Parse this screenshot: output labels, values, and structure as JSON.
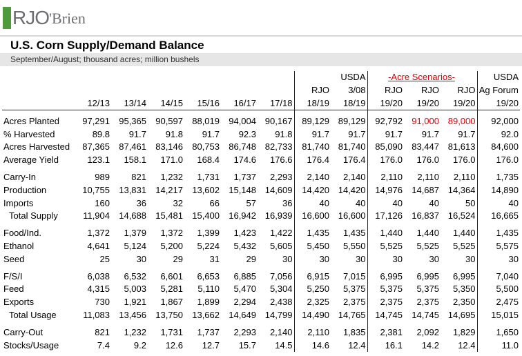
{
  "logo": {
    "mark": "RJO",
    "name": "'Brien"
  },
  "title": "U.S. Corn Supply/Demand Balance",
  "subtitle": "September/August;  thousand acres; million bushels",
  "header": {
    "row1": [
      null,
      null,
      null,
      null,
      null,
      null,
      null,
      "USDA",
      null,
      null,
      null,
      "USDA"
    ],
    "scenarios": "-Acre Scenarios-",
    "row2": [
      null,
      null,
      null,
      null,
      null,
      null,
      "RJO",
      "3/08",
      "RJO",
      "RJO",
      "RJO",
      "Ag Forum"
    ],
    "row3": [
      "12/13",
      "13/14",
      "14/15",
      "15/16",
      "16/17",
      "17/18",
      "18/19",
      "18/19",
      "19/20",
      "19/20",
      "19/20",
      "19/20"
    ]
  },
  "groups": [
    [
      {
        "label": "Acres Planted",
        "values": [
          "97,291",
          "95,365",
          "90,597",
          "88,019",
          "94,004",
          "90,167",
          "89,129",
          "89,129",
          "92,792",
          "91,000",
          "89,000",
          "92,000"
        ]
      },
      {
        "label": "% Harvested",
        "values": [
          "89.8",
          "91.7",
          "91.8",
          "91.7",
          "92.3",
          "91.8",
          "91.7",
          "91.7",
          "91.7",
          "91.7",
          "91.7",
          "92.0"
        ]
      },
      {
        "label": "Acres Harvested",
        "values": [
          "87,365",
          "87,461",
          "83,146",
          "80,753",
          "86,748",
          "82,733",
          "81,740",
          "81,740",
          "85,090",
          "83,447",
          "81,613",
          "84,600"
        ]
      },
      {
        "label": "Average Yield",
        "values": [
          "123.1",
          "158.1",
          "171.0",
          "168.4",
          "174.6",
          "176.6",
          "176.4",
          "176.4",
          "176.0",
          "176.0",
          "176.0",
          "176.0"
        ]
      }
    ],
    [
      {
        "label": "Carry-In",
        "values": [
          "989",
          "821",
          "1,232",
          "1,731",
          "1,737",
          "2,293",
          "2,140",
          "2,140",
          "2,110",
          "2,110",
          "2,110",
          "1,735"
        ]
      },
      {
        "label": "Production",
        "values": [
          "10,755",
          "13,831",
          "14,217",
          "13,602",
          "15,148",
          "14,609",
          "14,420",
          "14,420",
          "14,976",
          "14,687",
          "14,364",
          "14,890"
        ]
      },
      {
        "label": "Imports",
        "values": [
          "160",
          "36",
          "32",
          "66",
          "57",
          "36",
          "40",
          "40",
          "40",
          "40",
          "50",
          "40"
        ]
      },
      {
        "label": "Total Supply",
        "values": [
          "11,904",
          "14,688",
          "15,481",
          "15,400",
          "16,942",
          "16,939",
          "16,600",
          "16,600",
          "17,126",
          "16,837",
          "16,524",
          "16,665"
        ]
      }
    ],
    [
      {
        "label": "Food/Ind.",
        "values": [
          "1,372",
          "1,379",
          "1,372",
          "1,399",
          "1,423",
          "1,422",
          "1,435",
          "1,435",
          "1,440",
          "1,440",
          "1,440",
          "1,435"
        ]
      },
      {
        "label": "Ethanol",
        "values": [
          "4,641",
          "5,124",
          "5,200",
          "5,224",
          "5,432",
          "5,605",
          "5,450",
          "5,550",
          "5,525",
          "5,525",
          "5,525",
          "5,575"
        ]
      },
      {
        "label": "Seed",
        "values": [
          "25",
          "30",
          "29",
          "31",
          "29",
          "30",
          "30",
          "30",
          "30",
          "30",
          "30",
          "30"
        ]
      }
    ],
    [
      {
        "label": "F/S/I",
        "values": [
          "6,038",
          "6,532",
          "6,601",
          "6,653",
          "6,885",
          "7,056",
          "6,915",
          "7,015",
          "6,995",
          "6,995",
          "6,995",
          "7,040"
        ]
      },
      {
        "label": "Feed",
        "values": [
          "4,315",
          "5,003",
          "5,281",
          "5,110",
          "5,470",
          "5,304",
          "5,250",
          "5,375",
          "5,375",
          "5,375",
          "5,350",
          "5,500"
        ]
      },
      {
        "label": "Exports",
        "values": [
          "730",
          "1,921",
          "1,867",
          "1,899",
          "2,294",
          "2,438",
          "2,325",
          "2,375",
          "2,375",
          "2,375",
          "2,350",
          "2,475"
        ]
      },
      {
        "label": "Total Usage",
        "values": [
          "11,083",
          "13,456",
          "13,750",
          "13,662",
          "14,649",
          "14,799",
          "14,490",
          "14,765",
          "14,745",
          "14,745",
          "14,695",
          "15,015"
        ]
      }
    ],
    [
      {
        "label": "Carry-Out",
        "values": [
          "821",
          "1,232",
          "1,731",
          "1,737",
          "2,293",
          "2,140",
          "2,110",
          "1,835",
          "2,381",
          "2,092",
          "1,829",
          "1,650"
        ]
      },
      {
        "label": "Stocks/Usage",
        "values": [
          "7.4",
          "9.2",
          "12.6",
          "12.7",
          "15.7",
          "14.5",
          "14.6",
          "12.4",
          "16.1",
          "14.2",
          "12.4",
          "11.0"
        ]
      }
    ]
  ]
}
